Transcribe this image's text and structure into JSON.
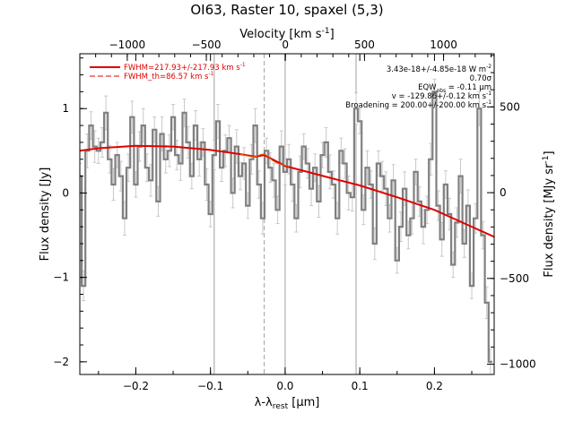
{
  "chart_data": {
    "type": "line",
    "title": "OI63, Raster 10, spaxel (5,3)",
    "xlabel": "λ-λ",
    "xlabel_sub": "rest",
    "xlabel_unit": "[μm]",
    "ylabel": "Flux density [Jy]",
    "top_xlabel": "Velocity [km s",
    "top_xlabel_sup": "-1",
    "top_xlabel_end": "]",
    "right_ylabel": "Flux density [MJy sr",
    "right_ylabel_sup": "-1",
    "right_ylabel_end": "]",
    "xlim": [
      -0.275,
      0.28
    ],
    "ylim": [
      -2.15,
      1.65
    ],
    "top_xlim": [
      -1300,
      1320
    ],
    "right_ylim": [
      -1060,
      810
    ],
    "x_ticks": [
      -0.2,
      -0.1,
      0.0,
      0.1,
      0.2
    ],
    "x_tick_labels": [
      "−0.2",
      "−0.1",
      "0.0",
      "0.1",
      "0.2"
    ],
    "y_ticks": [
      -2,
      -1,
      0,
      1
    ],
    "y_tick_labels": [
      "−2",
      "−1",
      "0",
      "1"
    ],
    "top_ticks": [
      -1000,
      -500,
      0,
      500,
      1000
    ],
    "top_tick_labels": [
      "−1000",
      "−500",
      "0",
      "500",
      "1000"
    ],
    "right_ticks": [
      -1000,
      -500,
      0,
      500
    ],
    "right_tick_labels": [
      "−1000",
      "−500",
      "0",
      "500"
    ],
    "vlines_solid": [
      -0.095,
      0.0,
      0.095
    ],
    "vline_dashed": -0.028,
    "legend": [
      {
        "label": "FWHM=217.93+/-217.93 km s",
        "sup": "-1",
        "style": "solid"
      },
      {
        "label": "FWHM_th=86.57 km s",
        "sup": "-1",
        "style": "dash"
      }
    ],
    "annotations": [
      {
        "text": "3.43e-18+/-4.85e-18 W m",
        "sup": "-2"
      },
      {
        "text": "0.70σ"
      },
      {
        "text": "EQW",
        "sub": "obs",
        "text2": " = -0.11 μm"
      },
      {
        "text": "v = -129.86+/-0.12 km s",
        "sup": "-1"
      },
      {
        "text": "Broadening = 200.00+/-200.00 km s",
        "sup": "-1"
      }
    ],
    "series": [
      {
        "style": "step",
        "color": "#808080",
        "x": [
          -0.275,
          -0.27,
          -0.265,
          -0.26,
          -0.255,
          -0.25,
          -0.245,
          -0.24,
          -0.235,
          -0.23,
          -0.225,
          -0.22,
          -0.215,
          -0.21,
          -0.205,
          -0.2,
          -0.195,
          -0.19,
          -0.185,
          -0.18,
          -0.175,
          -0.17,
          -0.165,
          -0.16,
          -0.155,
          -0.15,
          -0.145,
          -0.14,
          -0.135,
          -0.13,
          -0.125,
          -0.12,
          -0.115,
          -0.11,
          -0.105,
          -0.1,
          -0.095,
          -0.09,
          -0.085,
          -0.08,
          -0.075,
          -0.07,
          -0.065,
          -0.06,
          -0.055,
          -0.05,
          -0.045,
          -0.04,
          -0.035,
          -0.03,
          -0.025,
          -0.02,
          -0.015,
          -0.01,
          -0.005,
          0.0,
          0.005,
          0.01,
          0.015,
          0.02,
          0.025,
          0.03,
          0.035,
          0.04,
          0.045,
          0.05,
          0.055,
          0.06,
          0.065,
          0.07,
          0.075,
          0.08,
          0.085,
          0.09,
          0.095,
          0.1,
          0.105,
          0.11,
          0.115,
          0.12,
          0.125,
          0.13,
          0.135,
          0.14,
          0.145,
          0.15,
          0.155,
          0.16,
          0.165,
          0.17,
          0.175,
          0.18,
          0.185,
          0.19,
          0.195,
          0.2,
          0.205,
          0.21,
          0.215,
          0.22,
          0.225,
          0.23,
          0.235,
          0.24,
          0.245,
          0.25,
          0.255,
          0.26,
          0.265,
          0.27,
          0.275
        ],
        "y": [
          0.2,
          -1.1,
          0.5,
          0.8,
          0.55,
          0.5,
          0.6,
          0.95,
          0.4,
          0.1,
          0.45,
          0.2,
          -0.3,
          0.3,
          0.9,
          0.1,
          0.55,
          0.8,
          0.3,
          0.15,
          0.75,
          -0.1,
          0.7,
          0.4,
          0.5,
          0.9,
          0.45,
          0.35,
          0.95,
          0.6,
          0.2,
          0.8,
          0.4,
          0.6,
          0.1,
          -0.25,
          0.45,
          0.85,
          0.3,
          0.5,
          0.65,
          0.0,
          0.55,
          0.2,
          0.35,
          -0.15,
          0.4,
          0.8,
          0.1,
          -0.3,
          0.5,
          0.3,
          0.15,
          -0.2,
          0.55,
          0.25,
          0.4,
          0.1,
          -0.3,
          0.25,
          0.55,
          0.35,
          0.05,
          0.3,
          -0.1,
          0.45,
          0.6,
          0.25,
          0.1,
          -0.3,
          0.5,
          0.35,
          0.0,
          -0.05,
          1.0,
          0.85,
          -0.2,
          0.3,
          0.1,
          -0.6,
          0.35,
          0.2,
          0.05,
          -0.3,
          0.15,
          -0.8,
          -0.4,
          0.05,
          -0.5,
          -0.3,
          0.25,
          -0.1,
          -0.4,
          -0.2,
          0.4,
          1.2,
          -0.15,
          -0.55,
          0.1,
          -0.25,
          -0.85,
          -0.35,
          0.2,
          -0.6,
          -0.15,
          -1.1,
          -0.3,
          1.0,
          -0.5,
          -1.3,
          -2.0
        ]
      },
      {
        "style": "line",
        "color": "#e00000",
        "name": "fit",
        "x": [
          -0.275,
          -0.25,
          -0.2,
          -0.15,
          -0.1,
          -0.06,
          -0.04,
          -0.028,
          -0.015,
          0.0,
          0.03,
          0.06,
          0.1,
          0.15,
          0.2,
          0.25,
          0.28
        ],
        "y": [
          0.5,
          0.53,
          0.56,
          0.55,
          0.51,
          0.46,
          0.43,
          0.45,
          0.39,
          0.32,
          0.25,
          0.18,
          0.09,
          -0.05,
          -0.2,
          -0.4,
          -0.52
        ]
      }
    ]
  }
}
